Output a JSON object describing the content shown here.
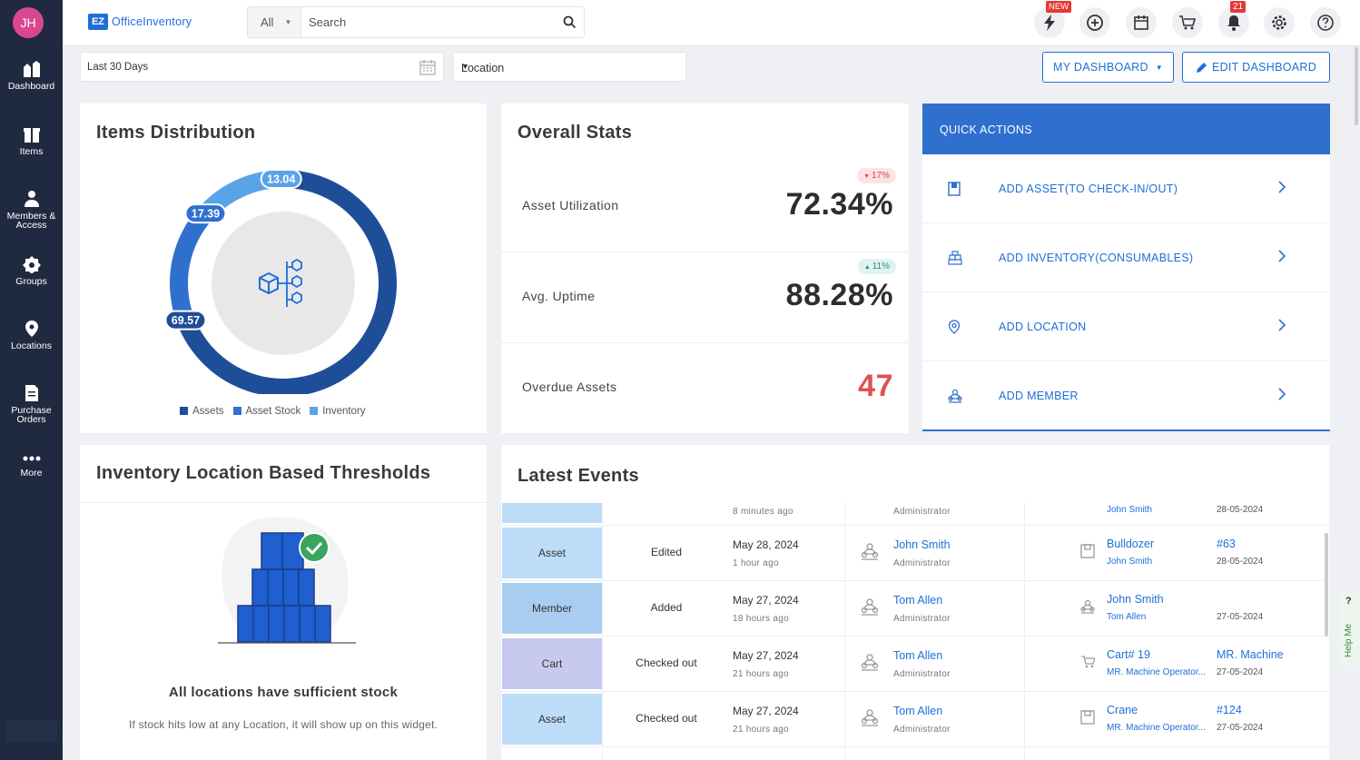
{
  "app": {
    "logo_abbr": "EZ",
    "logo_text": "OfficeInventory",
    "avatar_initials": "JH"
  },
  "sidebar": {
    "items": [
      {
        "label": "Dashboard",
        "icon": "dashboard-icon"
      },
      {
        "label": "Items",
        "icon": "items-icon"
      },
      {
        "label": "Members & Access",
        "icon": "members-icon"
      },
      {
        "label": "Groups",
        "icon": "groups-icon"
      },
      {
        "label": "Locations",
        "icon": "location-pin-icon"
      },
      {
        "label": "Purchase Orders",
        "icon": "purchase-orders-icon"
      },
      {
        "label": "More",
        "icon": "more-dots-icon"
      }
    ]
  },
  "search": {
    "scope": "All",
    "placeholder": "Search"
  },
  "topbar": {
    "new_badge": "NEW",
    "notification_count": "21"
  },
  "filters": {
    "date_range": "Last 30 Days",
    "location": "Location"
  },
  "buttons": {
    "my_dashboard": "MY DASHBOARD",
    "edit_dashboard": "EDIT DASHBOARD"
  },
  "items_distribution": {
    "title": "Items Distribution",
    "legend": [
      "Assets",
      "Asset Stock",
      "Inventory"
    ]
  },
  "chart_data": {
    "type": "pie",
    "variant": "donut",
    "categories": [
      "Assets",
      "Asset Stock",
      "Inventory"
    ],
    "values": [
      69.57,
      17.39,
      13.04
    ],
    "labels": [
      "69.57",
      "17.39",
      "13.04"
    ],
    "colors": [
      "#1f4e99",
      "#2f70cf",
      "#5aa3e8"
    ]
  },
  "overall_stats": {
    "title": "Overall Stats",
    "rows": [
      {
        "label": "Asset Utilization",
        "value": "72.34%",
        "change": "17%",
        "trend": "down"
      },
      {
        "label": "Avg. Uptime",
        "value": "88.28%",
        "change": "11%",
        "trend": "up"
      },
      {
        "label": "Overdue Assets",
        "value": "47"
      }
    ]
  },
  "quick_actions": {
    "title": "QUICK ACTIONS",
    "items": [
      {
        "label": "ADD ASSET(TO CHECK-IN/OUT)",
        "icon": "asset-box-icon"
      },
      {
        "label": "ADD INVENTORY(CONSUMABLES)",
        "icon": "inventory-stack-icon"
      },
      {
        "label": "ADD LOCATION",
        "icon": "location-pin-icon"
      },
      {
        "label": "ADD MEMBER",
        "icon": "member-group-icon"
      }
    ]
  },
  "thresholds": {
    "title": "Inventory Location Based Thresholds",
    "headline": "All locations have sufficient stock",
    "note": "If stock hits low at any Location, it will show up on this widget."
  },
  "latest_events": {
    "title": "Latest Events",
    "partial_row": {
      "ago": "8 minutes ago",
      "role": "Administrator",
      "sub": "John Smith",
      "date": "28-05-2024"
    },
    "rows": [
      {
        "type": "Asset",
        "color": "#bcdcf7",
        "action": "Edited",
        "date": "May 28, 2024",
        "ago": "1 hour ago",
        "user": "John Smith",
        "role": "Administrator",
        "item": "Bulldozer",
        "item_sub": "John Smith",
        "extra": "#63",
        "edate": "28-05-2024",
        "item_icon": "asset-box-icon"
      },
      {
        "type": "Member",
        "color": "#a9cdf0",
        "action": "Added",
        "date": "May 27, 2024",
        "ago": "18 hours ago",
        "user": "Tom Allen",
        "role": "Administrator",
        "item": "John Smith",
        "item_sub": "Tom Allen",
        "extra": "",
        "edate": "27-05-2024",
        "item_icon": "member-group-icon"
      },
      {
        "type": "Cart",
        "color": "#c8c9ef",
        "action": "Checked out",
        "date": "May 27, 2024",
        "ago": "21 hours ago",
        "user": "Tom Allen",
        "role": "Administrator",
        "item": "Cart# 19",
        "item_sub": "MR. Machine Operator...",
        "extra": "MR. Machine",
        "edate": "27-05-2024",
        "item_icon": "cart-icon"
      },
      {
        "type": "Asset",
        "color": "#bcdcf7",
        "action": "Checked out",
        "date": "May 27, 2024",
        "ago": "21 hours ago",
        "user": "Tom Allen",
        "role": "Administrator",
        "item": "Crane",
        "item_sub": "MR. Machine Operator...",
        "extra": "#124",
        "edate": "27-05-2024",
        "item_icon": "asset-box-icon"
      }
    ]
  },
  "help": {
    "label": "Help Me",
    "question": "?"
  }
}
